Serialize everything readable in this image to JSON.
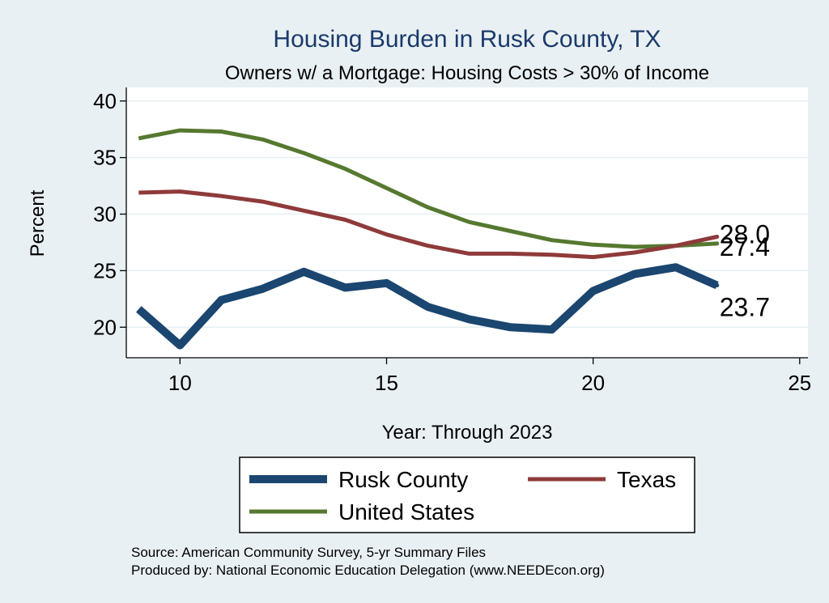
{
  "chart_data": {
    "type": "line",
    "title": "Housing Burden in Rusk County, TX",
    "subtitle": "Owners w/ a Mortgage: Housing Costs > 30% of Income",
    "xlabel": "Year: Through 2023",
    "ylabel": "Percent",
    "xlim": [
      8.7,
      25.2
    ],
    "ylim": [
      17.3,
      41.2
    ],
    "xticks": [
      10,
      15,
      20,
      25
    ],
    "yticks": [
      20,
      25,
      30,
      35,
      40
    ],
    "grid": true,
    "legend_position": "bottom",
    "x": [
      9,
      10,
      11,
      12,
      13,
      14,
      15,
      16,
      17,
      18,
      19,
      20,
      21,
      22,
      23
    ],
    "series": [
      {
        "name": "Rusk County",
        "color": "#1a4670",
        "values": [
          21.6,
          18.4,
          22.4,
          23.4,
          24.9,
          23.5,
          23.9,
          21.8,
          20.7,
          20.0,
          19.8,
          23.2,
          24.7,
          25.3,
          23.7
        ],
        "end_label": "23.7"
      },
      {
        "name": "Texas",
        "color": "#8f3a3a",
        "values": [
          31.9,
          32.0,
          31.6,
          31.1,
          30.3,
          29.5,
          28.2,
          27.2,
          26.5,
          26.5,
          26.4,
          26.2,
          26.6,
          27.2,
          28.0
        ],
        "end_label": "28.0"
      },
      {
        "name": "United States",
        "color": "#55792f",
        "values": [
          36.7,
          37.4,
          37.3,
          36.6,
          35.4,
          34.0,
          32.3,
          30.6,
          29.3,
          28.5,
          27.7,
          27.3,
          27.1,
          27.2,
          27.4
        ],
        "end_label": "27.4"
      }
    ]
  },
  "source_note": "Source: American Community Survey, 5-yr Summary Files",
  "producer_note": "Produced by: National Economic Education Delegation (www.NEEDEcon.org)"
}
